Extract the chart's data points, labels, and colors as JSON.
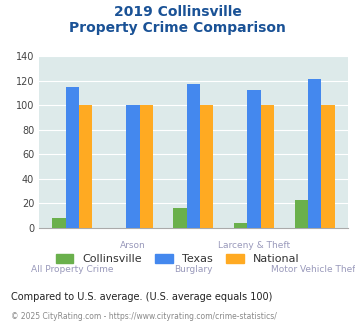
{
  "title_line1": "2019 Collinsville",
  "title_line2": "Property Crime Comparison",
  "categories": [
    "All Property Crime",
    "Arson",
    "Burglary",
    "Larceny & Theft",
    "Motor Vehicle Theft"
  ],
  "collinsville": [
    8,
    0,
    16,
    4,
    23
  ],
  "texas": [
    115,
    100,
    117,
    112,
    121
  ],
  "national": [
    100,
    100,
    100,
    100,
    100
  ],
  "collinsville_color": "#6ab04c",
  "texas_color": "#4488ee",
  "national_color": "#ffaa22",
  "ylim": [
    0,
    140
  ],
  "yticks": [
    0,
    20,
    40,
    60,
    80,
    100,
    120,
    140
  ],
  "bg_color": "#ddeaea",
  "title_color": "#1a5296",
  "xlabel_color": "#9999bb",
  "legend_text_color": "#333333",
  "footnote": "Compared to U.S. average. (U.S. average equals 100)",
  "footnote2": "© 2025 CityRating.com - https://www.cityrating.com/crime-statistics/",
  "footnote_color": "#222222",
  "footnote2_color": "#888888",
  "bar_width": 0.22
}
